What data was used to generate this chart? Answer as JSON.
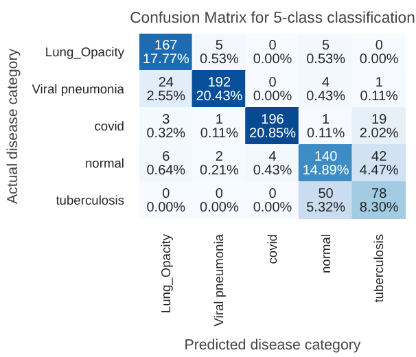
{
  "chart_data": {
    "type": "heatmap",
    "title": "Confusion Matrix for 5-class classification",
    "xlabel": "Predicted disease category",
    "ylabel": "Actual disease category",
    "categories": [
      "Lung_Opacity",
      "Viral pneumonia",
      "covid",
      "normal",
      "tuberculosis"
    ],
    "y_categories": [
      "Lung_Opacity",
      "Viral pneumonia",
      "covid",
      "normal",
      "tuberculosis"
    ],
    "cells": [
      [
        167,
        5,
        0,
        5,
        0
      ],
      [
        24,
        192,
        0,
        4,
        1
      ],
      [
        3,
        1,
        196,
        1,
        19
      ],
      [
        6,
        2,
        4,
        140,
        42
      ],
      [
        0,
        0,
        0,
        50,
        78
      ]
    ],
    "data_labels": true,
    "annotations": [
      "17.77%",
      "0.53%",
      "0.00%",
      "0.53%",
      "0.00%",
      "2.55%",
      "20.43%",
      "0.00%",
      "0.43%",
      "0.11%",
      "0.32%",
      "0.11%",
      "20.85%",
      "0.11%",
      "2.02%",
      "0.64%",
      "0.21%",
      "0.43%",
      "14.89%",
      "4.47%",
      "0.00%",
      "0.00%",
      "0.00%",
      "5.32%",
      "8.30%"
    ]
  }
}
